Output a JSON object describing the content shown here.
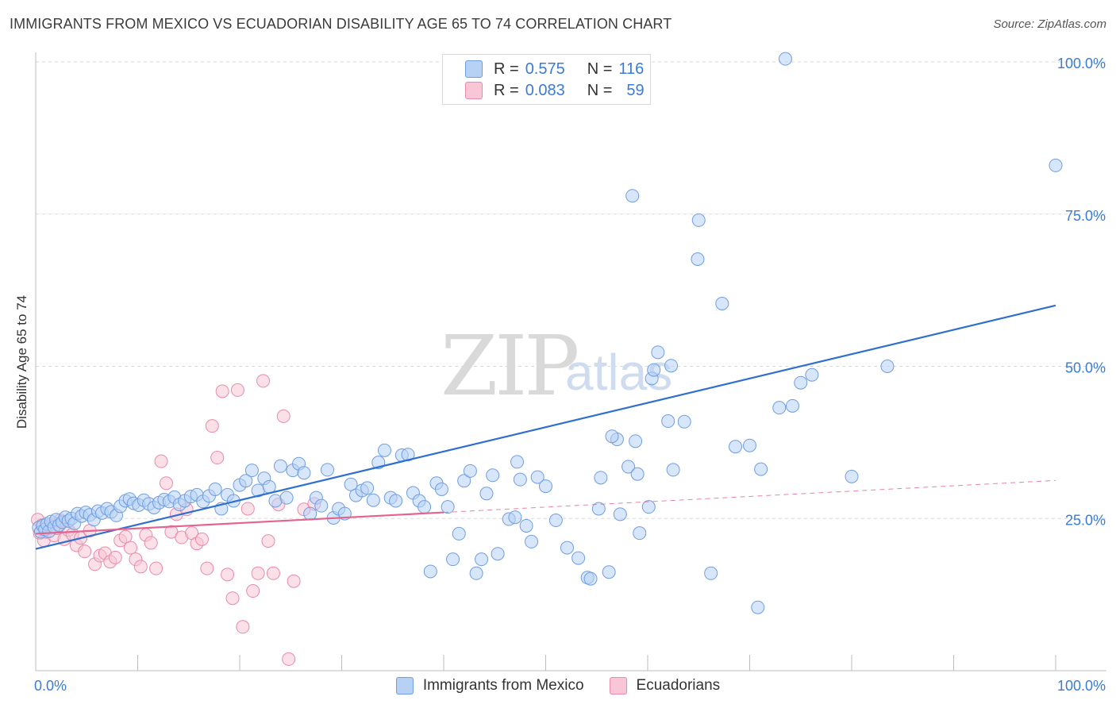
{
  "title": "IMMIGRANTS FROM MEXICO VS ECUADORIAN DISABILITY AGE 65 TO 74 CORRELATION CHART",
  "source": "Source: ZipAtlas.com",
  "watermark": {
    "zip": "ZIP",
    "atlas": "atlas"
  },
  "legend": {
    "series1": {
      "r_label": "R =",
      "r_value": "0.575",
      "n_label": "N =",
      "n_value": "116"
    },
    "series2": {
      "r_label": "R =",
      "r_value": "0.083",
      "n_label": "N =",
      "n_value": "59"
    }
  },
  "colors": {
    "blue_fill": "#b7d1f5",
    "blue_stroke": "#6f9ee0",
    "blue_line": "#2f6fcf",
    "blue_text": "#3a7bd5",
    "pink_fill": "#f8c6d6",
    "pink_stroke": "#e98aab",
    "pink_line": "#e2648f",
    "grid": "#d9d9d9"
  },
  "chart_data": {
    "type": "scatter",
    "title": "IMMIGRANTS FROM MEXICO VS ECUADORIAN DISABILITY AGE 65 TO 74 CORRELATION CHART",
    "xlabel": "",
    "ylabel": "Disability Age 65 to 74",
    "xlim": [
      0,
      100
    ],
    "ylim": [
      0,
      100
    ],
    "x_tick_labels": [
      "0.0%",
      "100.0%"
    ],
    "y_tick_labels": [
      "25.0%",
      "50.0%",
      "75.0%",
      "100.0%"
    ],
    "y_ticks": [
      25,
      50,
      75,
      100
    ],
    "grid": true,
    "legend_position": "top-center",
    "series": [
      {
        "name": "Immigrants from Mexico",
        "color": "#6f9ee0",
        "trend": {
          "x": [
            0,
            100
          ],
          "y": [
            20,
            60
          ]
        },
        "points": [
          [
            0.3,
            23.5
          ],
          [
            0.5,
            22.8
          ],
          [
            0.7,
            23.8
          ],
          [
            0.9,
            23.2
          ],
          [
            1.1,
            24.1
          ],
          [
            1.3,
            22.9
          ],
          [
            1.5,
            24.5
          ],
          [
            1.8,
            23.6
          ],
          [
            2.0,
            24.8
          ],
          [
            2.3,
            23.9
          ],
          [
            2.6,
            24.4
          ],
          [
            2.9,
            25.2
          ],
          [
            3.2,
            24.6
          ],
          [
            3.5,
            25.0
          ],
          [
            3.8,
            24.2
          ],
          [
            4.1,
            25.8
          ],
          [
            4.5,
            25.4
          ],
          [
            4.9,
            26.0
          ],
          [
            5.3,
            25.6
          ],
          [
            5.7,
            24.8
          ],
          [
            6.1,
            26.2
          ],
          [
            6.5,
            25.9
          ],
          [
            7.0,
            26.6
          ],
          [
            7.4,
            26.1
          ],
          [
            7.9,
            25.5
          ],
          [
            8.3,
            27.0
          ],
          [
            8.8,
            27.9
          ],
          [
            9.2,
            28.2
          ],
          [
            9.6,
            27.5
          ],
          [
            10.1,
            27.2
          ],
          [
            10.6,
            28.0
          ],
          [
            11.1,
            27.4
          ],
          [
            11.6,
            26.8
          ],
          [
            12.1,
            27.6
          ],
          [
            12.6,
            28.1
          ],
          [
            13.1,
            27.8
          ],
          [
            13.6,
            28.5
          ],
          [
            14.1,
            27.3
          ],
          [
            14.6,
            27.9
          ],
          [
            15.2,
            28.6
          ],
          [
            15.8,
            28.9
          ],
          [
            16.4,
            27.8
          ],
          [
            17.0,
            28.7
          ],
          [
            17.6,
            29.8
          ],
          [
            18.2,
            26.6
          ],
          [
            18.8,
            28.9
          ],
          [
            19.4,
            27.9
          ],
          [
            20.0,
            30.5
          ],
          [
            20.6,
            31.2
          ],
          [
            21.2,
            32.9
          ],
          [
            21.8,
            29.6
          ],
          [
            22.4,
            31.6
          ],
          [
            22.9,
            30.2
          ],
          [
            23.5,
            27.9
          ],
          [
            24.0,
            33.6
          ],
          [
            24.6,
            28.4
          ],
          [
            25.2,
            32.9
          ],
          [
            25.8,
            34.0
          ],
          [
            26.3,
            32.5
          ],
          [
            26.9,
            25.8
          ],
          [
            27.5,
            28.4
          ],
          [
            28.0,
            27.1
          ],
          [
            28.6,
            33.0
          ],
          [
            29.2,
            25.1
          ],
          [
            29.7,
            26.6
          ],
          [
            30.3,
            25.8
          ],
          [
            30.9,
            30.6
          ],
          [
            31.4,
            28.8
          ],
          [
            32.0,
            29.6
          ],
          [
            32.5,
            30.0
          ],
          [
            33.1,
            28.0
          ],
          [
            33.6,
            34.2
          ],
          [
            34.2,
            36.2
          ],
          [
            34.8,
            28.4
          ],
          [
            35.3,
            27.9
          ],
          [
            35.9,
            35.4
          ],
          [
            36.5,
            35.5
          ],
          [
            37.0,
            29.2
          ],
          [
            37.6,
            27.9
          ],
          [
            38.1,
            26.9
          ],
          [
            38.7,
            16.3
          ],
          [
            39.3,
            30.8
          ],
          [
            39.8,
            29.8
          ],
          [
            40.4,
            26.9
          ],
          [
            40.9,
            18.3
          ],
          [
            41.5,
            22.5
          ],
          [
            42.0,
            31.2
          ],
          [
            42.6,
            32.8
          ],
          [
            43.2,
            16.0
          ],
          [
            43.7,
            18.3
          ],
          [
            44.2,
            29.1
          ],
          [
            44.8,
            32.1
          ],
          [
            45.3,
            19.2
          ],
          [
            46.4,
            24.9
          ],
          [
            47.0,
            25.2
          ],
          [
            47.5,
            31.4
          ],
          [
            48.1,
            23.8
          ],
          [
            48.6,
            21.2
          ],
          [
            49.2,
            31.8
          ],
          [
            50.0,
            30.3
          ],
          [
            51.0,
            24.7
          ],
          [
            52.1,
            20.2
          ],
          [
            53.2,
            18.5
          ],
          [
            54.1,
            15.3
          ],
          [
            55.2,
            26.6
          ],
          [
            56.2,
            16.2
          ],
          [
            57.0,
            38.0
          ],
          [
            58.1,
            33.5
          ],
          [
            59.2,
            22.6
          ],
          [
            60.4,
            48.0
          ],
          [
            61.0,
            52.3
          ],
          [
            62.3,
            50.1
          ],
          [
            63.6,
            40.9
          ],
          [
            64.9,
            67.6
          ],
          [
            66.2,
            16.0
          ],
          [
            67.3,
            60.3
          ],
          [
            68.6,
            36.8
          ],
          [
            70.0,
            37.0
          ],
          [
            70.8,
            10.4
          ],
          [
            71.1,
            33.1
          ]
        ]
      },
      {
        "name": "Ecuadorians",
        "color": "#e98aab",
        "trend": {
          "x": [
            0,
            40
          ],
          "y": [
            22.5,
            26
          ]
        },
        "points": [
          [
            0.2,
            24.8
          ],
          [
            0.4,
            22.6
          ],
          [
            0.6,
            23.9
          ],
          [
            0.8,
            21.4
          ],
          [
            1.0,
            22.8
          ],
          [
            1.2,
            23.6
          ],
          [
            1.5,
            24.1
          ],
          [
            1.8,
            22.2
          ],
          [
            2.1,
            23.4
          ],
          [
            2.4,
            24.7
          ],
          [
            2.8,
            21.6
          ],
          [
            3.2,
            23.1
          ],
          [
            3.6,
            22.4
          ],
          [
            4.0,
            20.6
          ],
          [
            4.4,
            21.8
          ],
          [
            4.8,
            19.6
          ],
          [
            5.3,
            23.0
          ],
          [
            5.8,
            17.5
          ],
          [
            6.3,
            18.9
          ],
          [
            6.8,
            19.3
          ],
          [
            7.3,
            17.9
          ],
          [
            7.8,
            18.6
          ],
          [
            8.3,
            21.4
          ],
          [
            8.8,
            22.0
          ],
          [
            9.3,
            20.2
          ],
          [
            9.8,
            18.3
          ],
          [
            10.3,
            17.1
          ],
          [
            10.8,
            22.3
          ],
          [
            11.3,
            21.0
          ],
          [
            11.8,
            16.8
          ],
          [
            12.3,
            34.4
          ],
          [
            12.8,
            30.8
          ],
          [
            13.3,
            22.8
          ],
          [
            13.8,
            25.7
          ],
          [
            14.3,
            21.9
          ],
          [
            14.8,
            26.5
          ],
          [
            15.3,
            22.6
          ],
          [
            15.8,
            20.9
          ],
          [
            16.3,
            21.6
          ],
          [
            16.8,
            16.8
          ],
          [
            17.3,
            40.2
          ],
          [
            17.8,
            35.0
          ],
          [
            18.3,
            45.9
          ],
          [
            18.8,
            15.8
          ],
          [
            19.3,
            11.9
          ],
          [
            19.8,
            46.1
          ],
          [
            20.3,
            7.2
          ],
          [
            20.8,
            26.6
          ],
          [
            21.3,
            13.1
          ],
          [
            21.8,
            16.0
          ],
          [
            22.3,
            47.6
          ],
          [
            22.8,
            21.3
          ],
          [
            23.3,
            16.0
          ],
          [
            23.8,
            27.3
          ],
          [
            24.3,
            41.8
          ],
          [
            24.8,
            1.9
          ],
          [
            25.3,
            14.7
          ],
          [
            26.3,
            26.5
          ],
          [
            27.3,
            27.4
          ]
        ]
      }
    ],
    "extra_points": [
      {
        "series": "Immigrants from Mexico",
        "points": [
          [
            73.5,
            100.5
          ],
          [
            58.5,
            78.0
          ],
          [
            65.0,
            74.0
          ],
          [
            100.0,
            83.0
          ],
          [
            83.5,
            50.0
          ],
          [
            56.5,
            38.5
          ],
          [
            62.0,
            41.0
          ],
          [
            60.6,
            49.4
          ],
          [
            72.9,
            43.2
          ],
          [
            75.0,
            47.3
          ],
          [
            74.2,
            43.5
          ],
          [
            80.0,
            31.9
          ],
          [
            76.1,
            48.6
          ],
          [
            62.5,
            33.0
          ],
          [
            58.8,
            37.7
          ],
          [
            60.1,
            26.9
          ],
          [
            57.3,
            25.7
          ],
          [
            55.4,
            31.7
          ],
          [
            47.2,
            34.3
          ],
          [
            54.4,
            15.1
          ],
          [
            59.0,
            32.3
          ]
        ]
      }
    ]
  }
}
